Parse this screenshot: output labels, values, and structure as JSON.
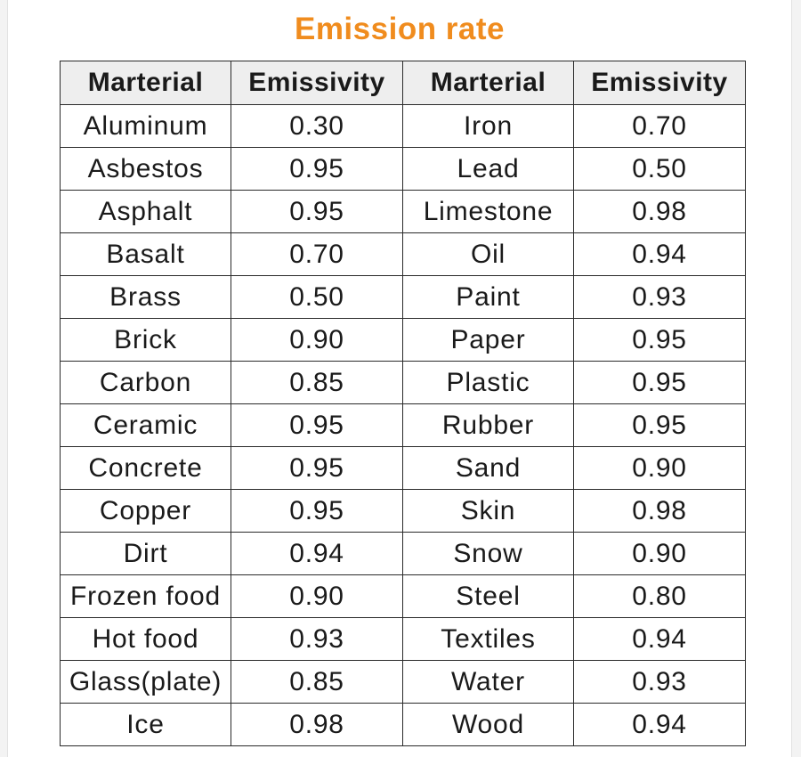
{
  "title": "Emission rate",
  "colors": {
    "title": "#f08c1e",
    "header_bg": "#eeeeee",
    "border": "#2a2a2a",
    "text": "#1a1a1a"
  },
  "headers": [
    "Marterial",
    "Emissivity",
    "Marterial",
    "Emissivity"
  ],
  "rows": [
    [
      "Aluminum",
      "0.30",
      "Iron",
      "0.70"
    ],
    [
      "Asbestos",
      "0.95",
      "Lead",
      "0.50"
    ],
    [
      "Asphalt",
      "0.95",
      "Limestone",
      "0.98"
    ],
    [
      "Basalt",
      "0.70",
      "Oil",
      "0.94"
    ],
    [
      "Brass",
      "0.50",
      "Paint",
      "0.93"
    ],
    [
      "Brick",
      "0.90",
      "Paper",
      "0.95"
    ],
    [
      "Carbon",
      "0.85",
      "Plastic",
      "0.95"
    ],
    [
      "Ceramic",
      "0.95",
      "Rubber",
      "0.95"
    ],
    [
      "Concrete",
      "0.95",
      "Sand",
      "0.90"
    ],
    [
      "Copper",
      "0.95",
      "Skin",
      "0.98"
    ],
    [
      "Dirt",
      "0.94",
      "Snow",
      "0.90"
    ],
    [
      "Frozen food",
      "0.90",
      "Steel",
      "0.80"
    ],
    [
      "Hot food",
      "0.93",
      "Textiles",
      "0.94"
    ],
    [
      "Glass(plate)",
      "0.85",
      "Water",
      "0.93"
    ],
    [
      "Ice",
      "0.98",
      "Wood",
      "0.94"
    ]
  ]
}
